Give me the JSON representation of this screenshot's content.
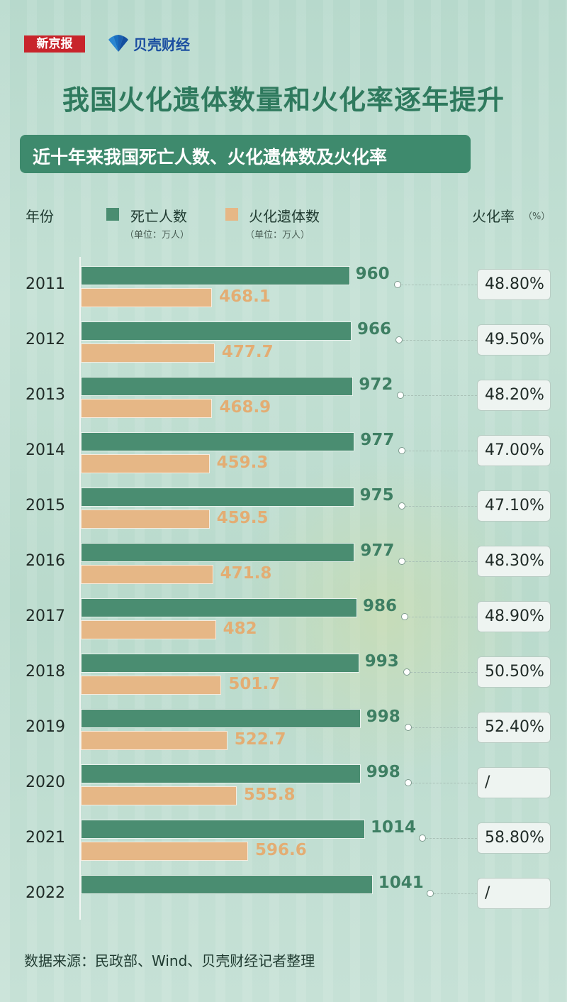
{
  "logos": {
    "xinjingbao": "新京报",
    "beike": "贝壳财经"
  },
  "title": "我国火化遗体数量和火化率逐年提升",
  "subtitle": "近十年来我国死亡人数、火化遗体数及火化率",
  "headers": {
    "year": "年份",
    "deaths": "死亡人数",
    "deaths_unit": "（单位：万人）",
    "cremations": "火化遗体数",
    "cremations_unit": "（单位：万人）",
    "rate": "火化率",
    "rate_unit": "（%）"
  },
  "colors": {
    "deaths": "#4a8d71",
    "cremations": "#e6b786",
    "title": "#2f7a5e"
  },
  "chart_data": {
    "type": "bar",
    "orientation": "horizontal",
    "categories": [
      "2011",
      "2012",
      "2013",
      "2014",
      "2015",
      "2016",
      "2017",
      "2018",
      "2019",
      "2020",
      "2021",
      "2022"
    ],
    "series": [
      {
        "name": "死亡人数",
        "labels": [
          "960",
          "966",
          "972",
          "977",
          "975",
          "977",
          "986",
          "993",
          "998",
          "998",
          "1014",
          "1041"
        ],
        "values": [
          960,
          966,
          972,
          977,
          975,
          977,
          986,
          993,
          998,
          998,
          1014,
          1041
        ]
      },
      {
        "name": "火化遗体数",
        "labels": [
          "468.1",
          "477.7",
          "468.9",
          "459.3",
          "459.5",
          "471.8",
          "482",
          "501.7",
          "522.7",
          "555.8",
          "596.6",
          ""
        ],
        "values": [
          468.1,
          477.7,
          468.9,
          459.3,
          459.5,
          471.8,
          482,
          501.7,
          522.7,
          555.8,
          596.6,
          null
        ]
      }
    ],
    "rates": [
      "48.80%",
      "49.50%",
      "48.20%",
      "47.00%",
      "47.10%",
      "48.30%",
      "48.90%",
      "50.50%",
      "52.40%",
      "/",
      "58.80%",
      "/"
    ]
  },
  "source": "数据来源：民政部、Wind、贝壳财经记者整理"
}
